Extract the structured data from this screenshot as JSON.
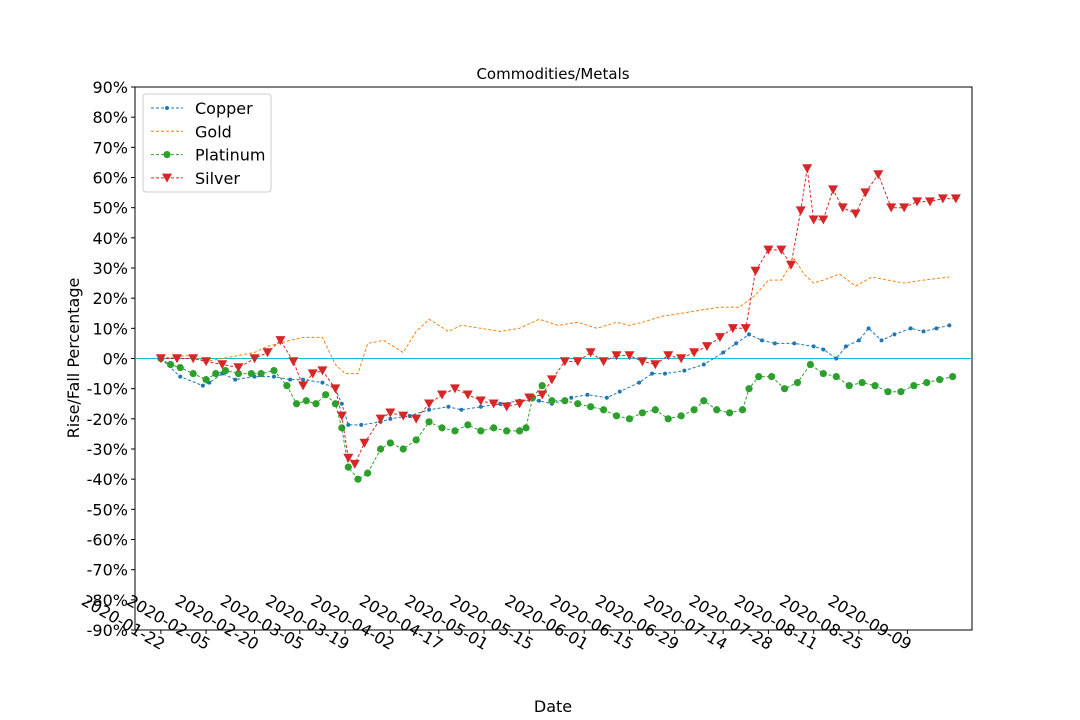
{
  "chart_data": {
    "type": "line",
    "title": "Commodities/Metals",
    "xlabel": "Date",
    "ylabel": "Rise/Fall Percentage",
    "ylim": [
      -90,
      90
    ],
    "xlim": [
      "2020-01-14",
      "2020-09-29"
    ],
    "ytick_step": 10,
    "y_format": "percent",
    "grid": false,
    "legend_position": "top-left",
    "reference_line": {
      "y": 0,
      "color": "#17becf"
    },
    "x_ticks": [
      "2020-01-22",
      "2020-02-05",
      "2020-02-20",
      "2020-03-05",
      "2020-03-19",
      "2020-04-02",
      "2020-04-17",
      "2020-05-01",
      "2020-05-15",
      "2020-06-01",
      "2020-06-15",
      "2020-06-29",
      "2020-07-14",
      "2020-07-28",
      "2020-08-11",
      "2020-08-25",
      "2020-09-09"
    ],
    "series": [
      {
        "name": "Copper",
        "color": "#1f77b4",
        "marker": "dot",
        "points": [
          [
            "2020-01-22",
            0
          ],
          [
            "2020-01-28",
            -6
          ],
          [
            "2020-02-04",
            -9
          ],
          [
            "2020-02-06",
            -8
          ],
          [
            "2020-02-10",
            -5
          ],
          [
            "2020-02-14",
            -7
          ],
          [
            "2020-02-20",
            -6
          ],
          [
            "2020-02-26",
            -6
          ],
          [
            "2020-03-02",
            -7
          ],
          [
            "2020-03-06",
            -7
          ],
          [
            "2020-03-12",
            -8
          ],
          [
            "2020-03-16",
            -10
          ],
          [
            "2020-03-18",
            -15
          ],
          [
            "2020-03-20",
            -22
          ],
          [
            "2020-03-24",
            -22
          ],
          [
            "2020-03-30",
            -21
          ],
          [
            "2020-04-02",
            -20
          ],
          [
            "2020-04-08",
            -19
          ],
          [
            "2020-04-14",
            -17
          ],
          [
            "2020-04-20",
            -16
          ],
          [
            "2020-04-24",
            -17
          ],
          [
            "2020-04-30",
            -16
          ],
          [
            "2020-05-06",
            -15
          ],
          [
            "2020-05-12",
            -14
          ],
          [
            "2020-05-18",
            -14
          ],
          [
            "2020-05-22",
            -15
          ],
          [
            "2020-05-28",
            -13
          ],
          [
            "2020-06-02",
            -12
          ],
          [
            "2020-06-08",
            -13
          ],
          [
            "2020-06-12",
            -11
          ],
          [
            "2020-06-18",
            -8
          ],
          [
            "2020-06-22",
            -5
          ],
          [
            "2020-06-26",
            -5
          ],
          [
            "2020-07-02",
            -4
          ],
          [
            "2020-07-08",
            -2
          ],
          [
            "2020-07-14",
            2
          ],
          [
            "2020-07-18",
            5
          ],
          [
            "2020-07-22",
            8
          ],
          [
            "2020-07-26",
            6
          ],
          [
            "2020-07-30",
            5
          ],
          [
            "2020-08-05",
            5
          ],
          [
            "2020-08-11",
            4
          ],
          [
            "2020-08-14",
            3
          ],
          [
            "2020-08-18",
            0
          ],
          [
            "2020-08-21",
            4
          ],
          [
            "2020-08-25",
            6
          ],
          [
            "2020-08-28",
            10
          ],
          [
            "2020-09-01",
            6
          ],
          [
            "2020-09-05",
            8
          ],
          [
            "2020-09-10",
            10
          ],
          [
            "2020-09-14",
            9
          ],
          [
            "2020-09-18",
            10
          ],
          [
            "2020-09-22",
            11
          ]
        ]
      },
      {
        "name": "Gold",
        "color": "#ff7f0e",
        "marker": "none",
        "points": [
          [
            "2020-01-22",
            0
          ],
          [
            "2020-01-30",
            1
          ],
          [
            "2020-02-05",
            -1
          ],
          [
            "2020-02-10",
            0
          ],
          [
            "2020-02-15",
            1
          ],
          [
            "2020-02-20",
            2
          ],
          [
            "2020-02-24",
            4
          ],
          [
            "2020-03-02",
            6
          ],
          [
            "2020-03-06",
            7
          ],
          [
            "2020-03-12",
            7
          ],
          [
            "2020-03-16",
            -2
          ],
          [
            "2020-03-19",
            -5
          ],
          [
            "2020-03-23",
            -5
          ],
          [
            "2020-03-26",
            5
          ],
          [
            "2020-03-31",
            6
          ],
          [
            "2020-04-06",
            2
          ],
          [
            "2020-04-10",
            9
          ],
          [
            "2020-04-14",
            13
          ],
          [
            "2020-04-20",
            9
          ],
          [
            "2020-04-24",
            11
          ],
          [
            "2020-04-30",
            10
          ],
          [
            "2020-05-06",
            9
          ],
          [
            "2020-05-12",
            10
          ],
          [
            "2020-05-18",
            13
          ],
          [
            "2020-05-24",
            11
          ],
          [
            "2020-05-30",
            12
          ],
          [
            "2020-06-05",
            10
          ],
          [
            "2020-06-11",
            12
          ],
          [
            "2020-06-15",
            11
          ],
          [
            "2020-06-19",
            12
          ],
          [
            "2020-06-25",
            14
          ],
          [
            "2020-07-01",
            15
          ],
          [
            "2020-07-07",
            16
          ],
          [
            "2020-07-13",
            17
          ],
          [
            "2020-07-19",
            17
          ],
          [
            "2020-07-24",
            21
          ],
          [
            "2020-07-28",
            26
          ],
          [
            "2020-08-01",
            26
          ],
          [
            "2020-08-05",
            33
          ],
          [
            "2020-08-08",
            28
          ],
          [
            "2020-08-11",
            25
          ],
          [
            "2020-08-14",
            26
          ],
          [
            "2020-08-19",
            28
          ],
          [
            "2020-08-24",
            24
          ],
          [
            "2020-08-29",
            27
          ],
          [
            "2020-09-03",
            26
          ],
          [
            "2020-09-08",
            25
          ],
          [
            "2020-09-14",
            26
          ],
          [
            "2020-09-22",
            27
          ]
        ]
      },
      {
        "name": "Platinum",
        "color": "#2ca02c",
        "marker": "circle",
        "points": [
          [
            "2020-01-22",
            0
          ],
          [
            "2020-01-25",
            -2
          ],
          [
            "2020-01-28",
            -3
          ],
          [
            "2020-02-01",
            -5
          ],
          [
            "2020-02-05",
            -7
          ],
          [
            "2020-02-08",
            -5
          ],
          [
            "2020-02-11",
            -4
          ],
          [
            "2020-02-15",
            -5
          ],
          [
            "2020-02-19",
            -5
          ],
          [
            "2020-02-22",
            -5
          ],
          [
            "2020-02-26",
            -4
          ],
          [
            "2020-03-01",
            -9
          ],
          [
            "2020-03-04",
            -15
          ],
          [
            "2020-03-07",
            -14
          ],
          [
            "2020-03-10",
            -15
          ],
          [
            "2020-03-13",
            -12
          ],
          [
            "2020-03-16",
            -15
          ],
          [
            "2020-03-18",
            -23
          ],
          [
            "2020-03-20",
            -36
          ],
          [
            "2020-03-23",
            -40
          ],
          [
            "2020-03-26",
            -38
          ],
          [
            "2020-03-30",
            -30
          ],
          [
            "2020-04-02",
            -28
          ],
          [
            "2020-04-06",
            -30
          ],
          [
            "2020-04-10",
            -27
          ],
          [
            "2020-04-14",
            -21
          ],
          [
            "2020-04-18",
            -23
          ],
          [
            "2020-04-22",
            -24
          ],
          [
            "2020-04-26",
            -22
          ],
          [
            "2020-04-30",
            -24
          ],
          [
            "2020-05-04",
            -23
          ],
          [
            "2020-05-08",
            -24
          ],
          [
            "2020-05-12",
            -24
          ],
          [
            "2020-05-14",
            -23
          ],
          [
            "2020-05-16",
            -13
          ],
          [
            "2020-05-19",
            -9
          ],
          [
            "2020-05-22",
            -14
          ],
          [
            "2020-05-26",
            -14
          ],
          [
            "2020-05-30",
            -15
          ],
          [
            "2020-06-03",
            -16
          ],
          [
            "2020-06-07",
            -17
          ],
          [
            "2020-06-11",
            -19
          ],
          [
            "2020-06-15",
            -20
          ],
          [
            "2020-06-19",
            -18
          ],
          [
            "2020-06-23",
            -17
          ],
          [
            "2020-06-27",
            -20
          ],
          [
            "2020-07-01",
            -19
          ],
          [
            "2020-07-05",
            -17
          ],
          [
            "2020-07-08",
            -14
          ],
          [
            "2020-07-12",
            -17
          ],
          [
            "2020-07-16",
            -18
          ],
          [
            "2020-07-20",
            -17
          ],
          [
            "2020-07-22",
            -10
          ],
          [
            "2020-07-25",
            -6
          ],
          [
            "2020-07-29",
            -6
          ],
          [
            "2020-08-02",
            -10
          ],
          [
            "2020-08-06",
            -8
          ],
          [
            "2020-08-10",
            -2
          ],
          [
            "2020-08-14",
            -5
          ],
          [
            "2020-08-18",
            -6
          ],
          [
            "2020-08-22",
            -9
          ],
          [
            "2020-08-26",
            -8
          ],
          [
            "2020-08-30",
            -9
          ],
          [
            "2020-09-03",
            -11
          ],
          [
            "2020-09-07",
            -11
          ],
          [
            "2020-09-11",
            -9
          ],
          [
            "2020-09-15",
            -8
          ],
          [
            "2020-09-19",
            -7
          ],
          [
            "2020-09-23",
            -6
          ]
        ]
      },
      {
        "name": "Silver",
        "color": "#d62728",
        "marker": "triangle-down",
        "points": [
          [
            "2020-01-22",
            0
          ],
          [
            "2020-01-27",
            0
          ],
          [
            "2020-02-01",
            0
          ],
          [
            "2020-02-05",
            -1
          ],
          [
            "2020-02-10",
            -2
          ],
          [
            "2020-02-15",
            -3
          ],
          [
            "2020-02-20",
            0
          ],
          [
            "2020-02-24",
            2
          ],
          [
            "2020-02-28",
            6
          ],
          [
            "2020-03-03",
            -1
          ],
          [
            "2020-03-06",
            -9
          ],
          [
            "2020-03-09",
            -5
          ],
          [
            "2020-03-12",
            -4
          ],
          [
            "2020-03-16",
            -10
          ],
          [
            "2020-03-18",
            -19
          ],
          [
            "2020-03-20",
            -33
          ],
          [
            "2020-03-22",
            -35
          ],
          [
            "2020-03-25",
            -28
          ],
          [
            "2020-03-30",
            -20
          ],
          [
            "2020-04-02",
            -18
          ],
          [
            "2020-04-06",
            -19
          ],
          [
            "2020-04-10",
            -20
          ],
          [
            "2020-04-14",
            -15
          ],
          [
            "2020-04-18",
            -12
          ],
          [
            "2020-04-22",
            -10
          ],
          [
            "2020-04-26",
            -12
          ],
          [
            "2020-04-30",
            -14
          ],
          [
            "2020-05-04",
            -15
          ],
          [
            "2020-05-08",
            -16
          ],
          [
            "2020-05-12",
            -15
          ],
          [
            "2020-05-15",
            -13
          ],
          [
            "2020-05-19",
            -12
          ],
          [
            "2020-05-22",
            -7
          ],
          [
            "2020-05-26",
            -1
          ],
          [
            "2020-05-30",
            -1
          ],
          [
            "2020-06-03",
            2
          ],
          [
            "2020-06-07",
            -1
          ],
          [
            "2020-06-11",
            1
          ],
          [
            "2020-06-15",
            1
          ],
          [
            "2020-06-19",
            -1
          ],
          [
            "2020-06-23",
            -2
          ],
          [
            "2020-06-27",
            1
          ],
          [
            "2020-07-01",
            0
          ],
          [
            "2020-07-05",
            2
          ],
          [
            "2020-07-09",
            4
          ],
          [
            "2020-07-13",
            7
          ],
          [
            "2020-07-17",
            10
          ],
          [
            "2020-07-21",
            10
          ],
          [
            "2020-07-24",
            29
          ],
          [
            "2020-07-28",
            36
          ],
          [
            "2020-08-01",
            36
          ],
          [
            "2020-08-04",
            31
          ],
          [
            "2020-08-07",
            49
          ],
          [
            "2020-08-09",
            63
          ],
          [
            "2020-08-11",
            46
          ],
          [
            "2020-08-14",
            46
          ],
          [
            "2020-08-17",
            56
          ],
          [
            "2020-08-20",
            50
          ],
          [
            "2020-08-24",
            48
          ],
          [
            "2020-08-27",
            55
          ],
          [
            "2020-08-31",
            61
          ],
          [
            "2020-09-04",
            50
          ],
          [
            "2020-09-08",
            50
          ],
          [
            "2020-09-12",
            52
          ],
          [
            "2020-09-16",
            52
          ],
          [
            "2020-09-20",
            53
          ],
          [
            "2020-09-24",
            53
          ]
        ]
      }
    ]
  }
}
